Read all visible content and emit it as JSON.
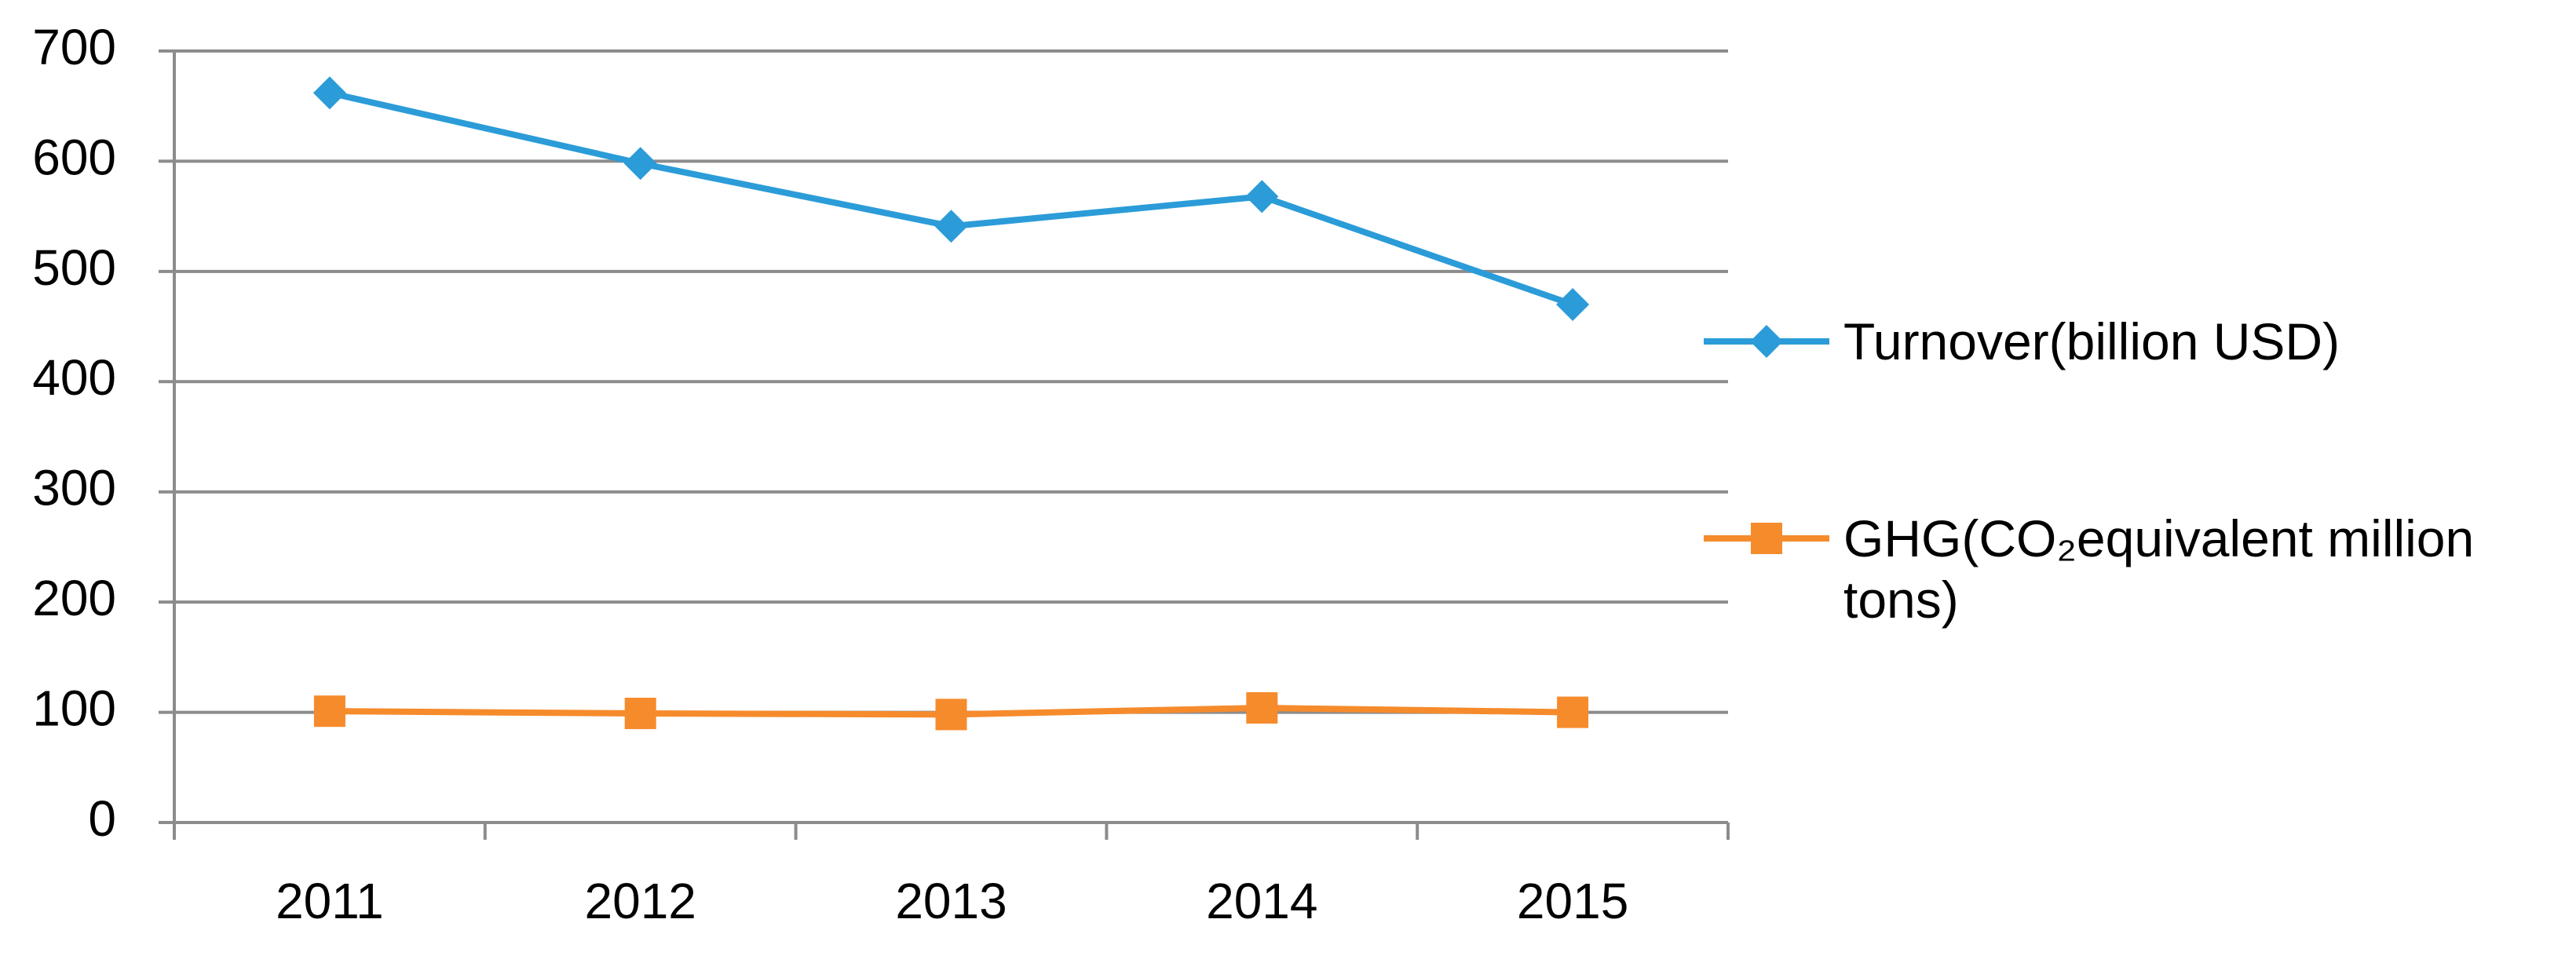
{
  "chart_data": {
    "type": "line",
    "categories": [
      "2011",
      "2012",
      "2013",
      "2014",
      "2015"
    ],
    "series": [
      {
        "name": "Turnover(billion USD)",
        "color": "#2b9cd8",
        "marker": "diamond",
        "values": [
          662,
          598,
          541,
          568,
          470
        ]
      },
      {
        "name": "GHG(CO₂equivalent million tons)",
        "color": "#f68b2c",
        "marker": "square",
        "values": [
          101,
          99,
          98,
          104,
          100
        ]
      }
    ],
    "ylim": [
      0,
      700
    ],
    "yticks": [
      0,
      100,
      200,
      300,
      400,
      500,
      600,
      700
    ],
    "grid": true,
    "legend": "right"
  }
}
